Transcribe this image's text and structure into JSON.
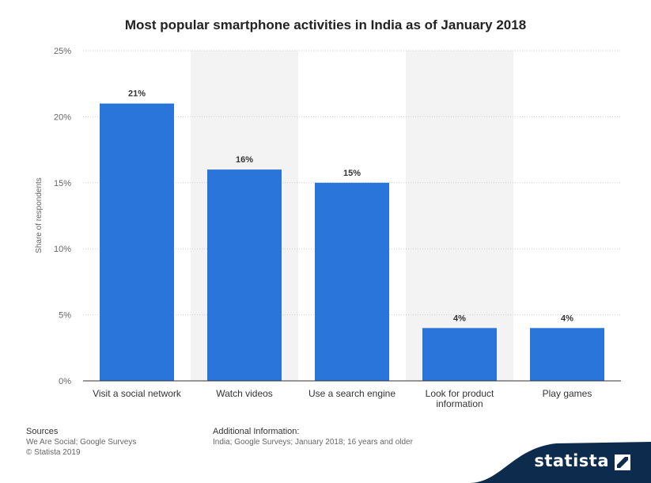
{
  "chart_data": {
    "type": "bar",
    "title": "Most popular smartphone activities in India as of January 2018",
    "xlabel": "",
    "ylabel": "Share of respondents",
    "ylim": [
      0,
      25
    ],
    "yticks": [
      0,
      5,
      10,
      15,
      20,
      25
    ],
    "ytick_labels": [
      "0%",
      "5%",
      "10%",
      "15%",
      "20%",
      "25%"
    ],
    "categories": [
      [
        "Visit a social network"
      ],
      [
        "Watch videos"
      ],
      [
        "Use a search engine"
      ],
      [
        "Look for product",
        "information"
      ],
      [
        "Play games"
      ]
    ],
    "values": [
      21,
      16,
      15,
      4,
      4
    ],
    "value_labels": [
      "21%",
      "16%",
      "15%",
      "4%",
      "4%"
    ],
    "grid": true,
    "legend": "none"
  },
  "colors": {
    "bar": "#2a75d9",
    "grid": "#d0d0d0",
    "band": "#f3f3f3",
    "brand_bg": "#0d2b4d"
  },
  "footer": {
    "sources_heading": "Sources",
    "sources_line1": "We Are Social; Google Surveys",
    "sources_line2": "© Statista 2019",
    "additional_heading": "Additional Information:",
    "additional_text": "India; Google Surveys; January 2018; 16 years and older"
  },
  "brand": {
    "name": "statista",
    "icon": "statista-logo-icon"
  }
}
